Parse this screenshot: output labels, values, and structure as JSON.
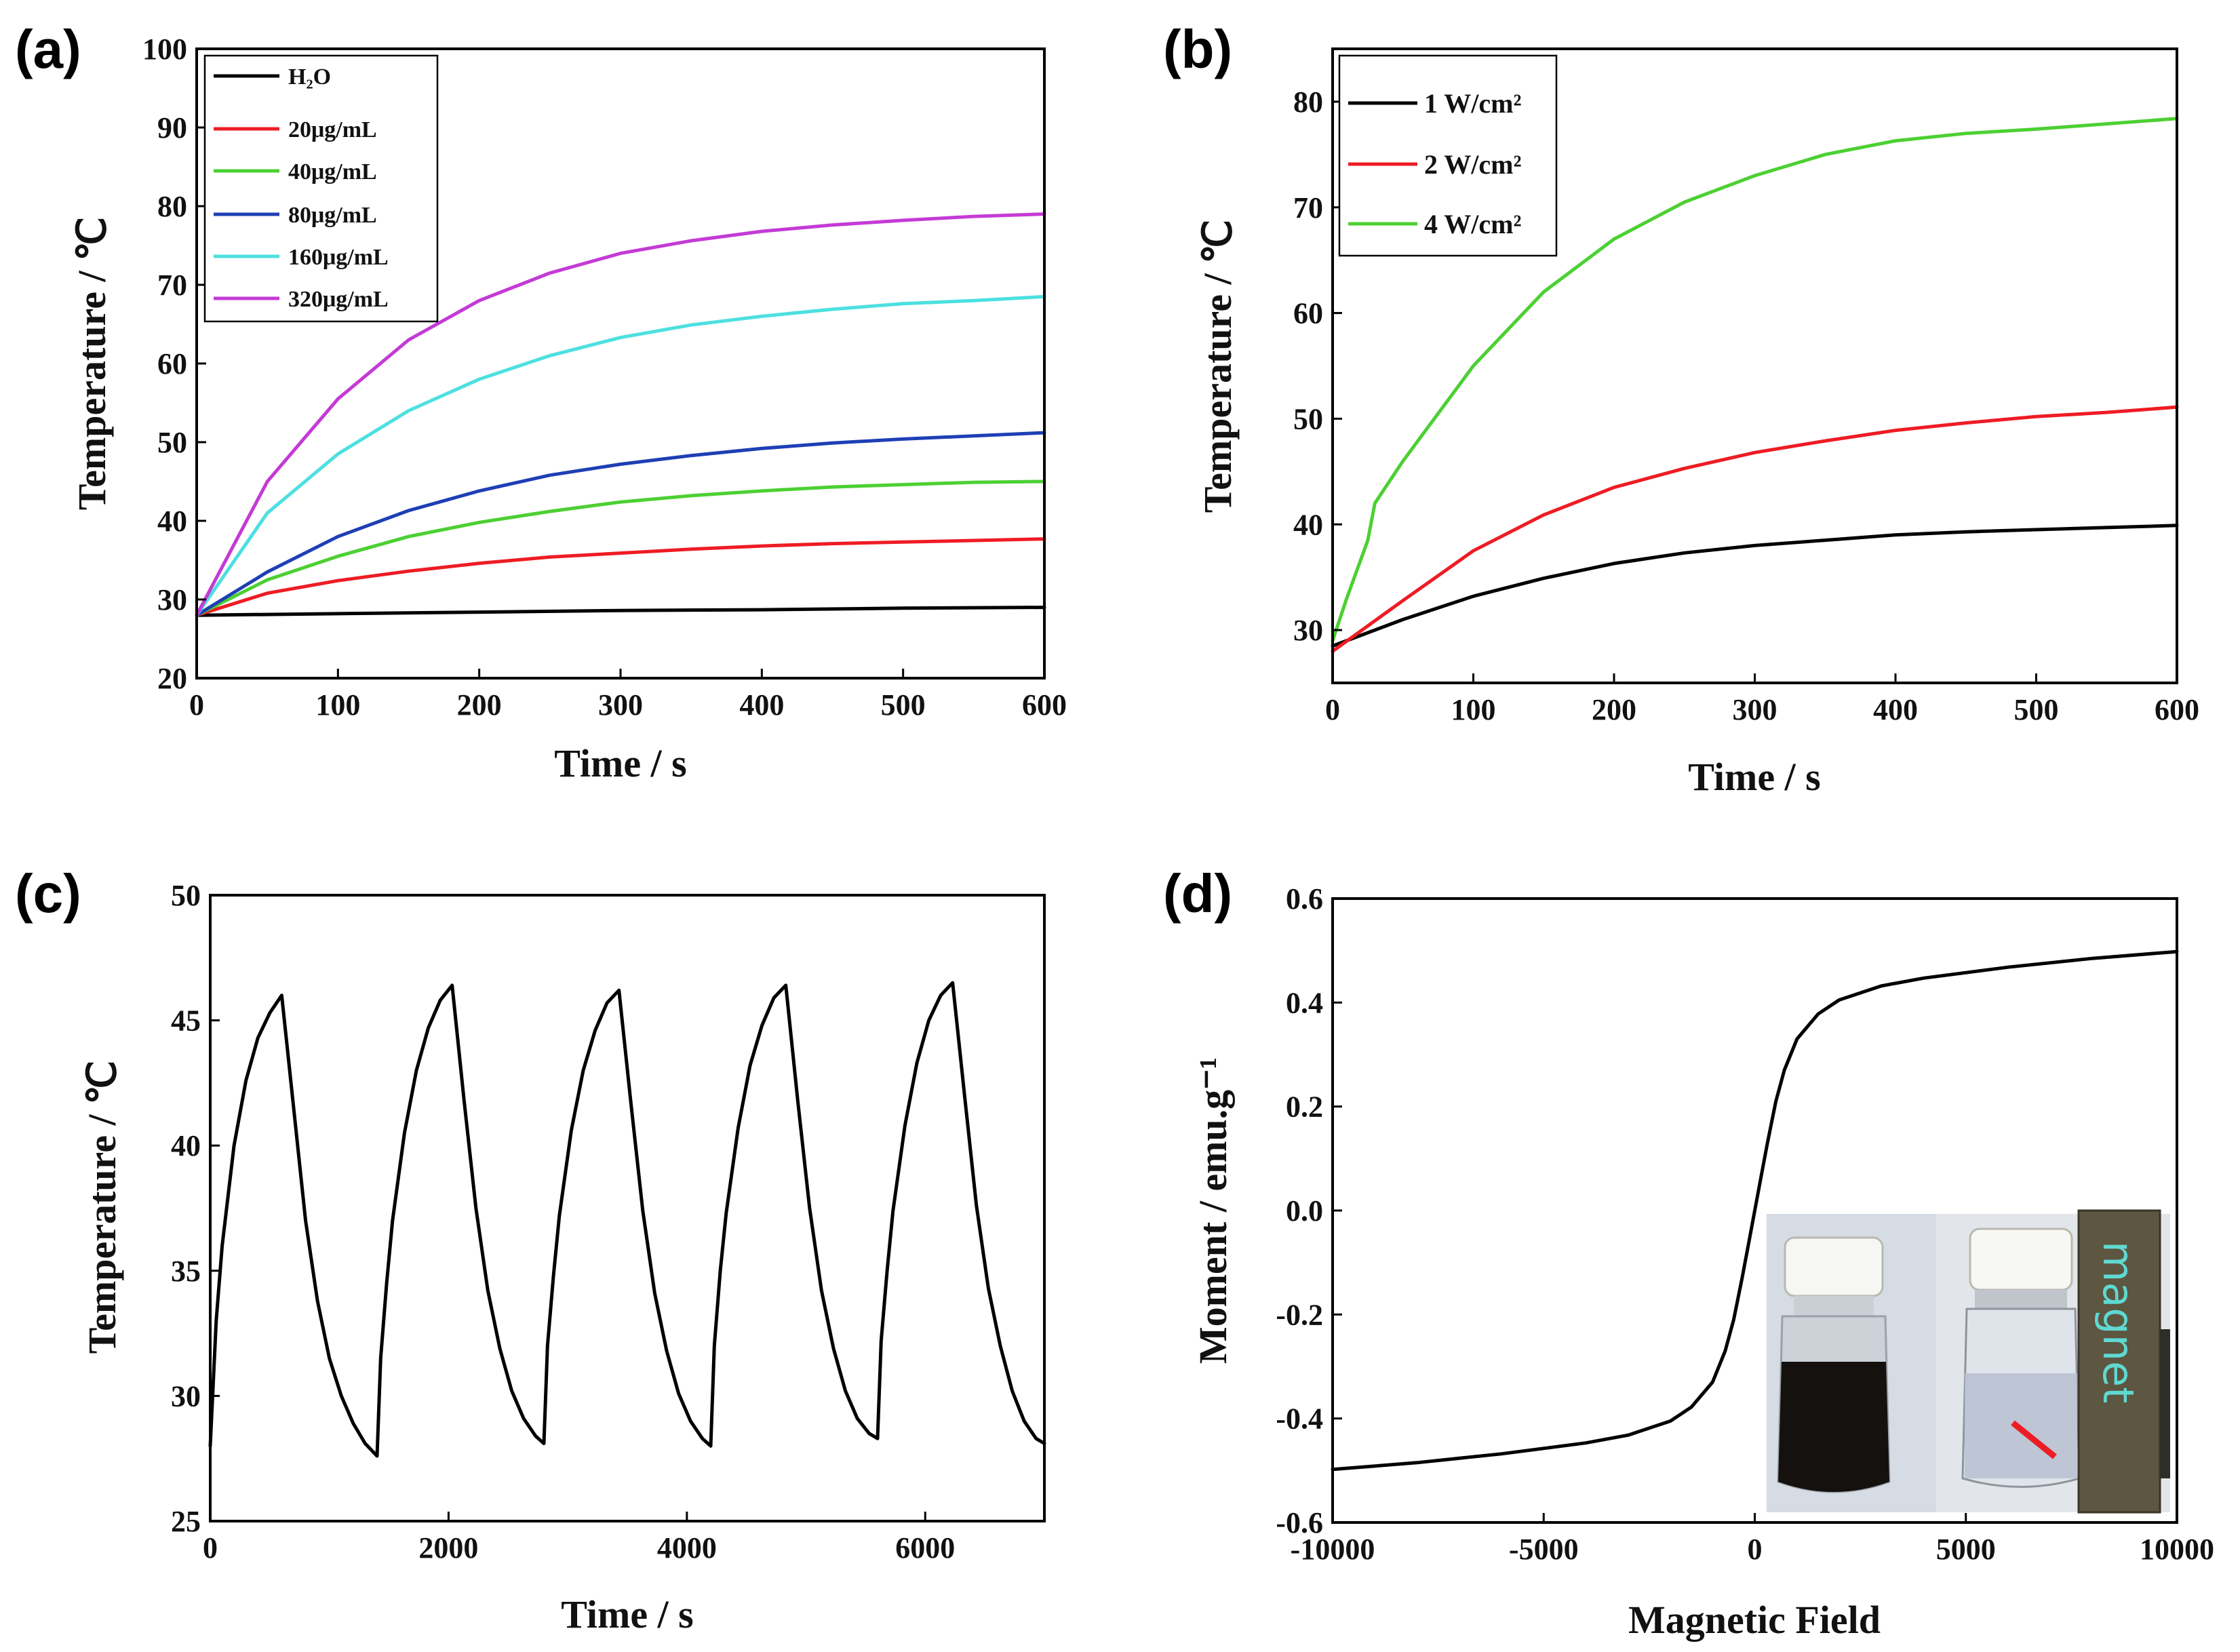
{
  "chart_data": [
    {
      "panel": "(a)",
      "type": "line",
      "xlabel": "Time / s",
      "ylabel": "Temperature / ℃",
      "xlim": [
        0,
        600
      ],
      "ylim": [
        20,
        100
      ],
      "xticks": [
        0,
        100,
        200,
        300,
        400,
        500,
        600
      ],
      "yticks": [
        20,
        30,
        40,
        50,
        60,
        70,
        80,
        90,
        100
      ],
      "legend_position": "top-left",
      "grid": false,
      "series": [
        {
          "name": "H₂O",
          "color": "#000000",
          "x": [
            0,
            100,
            200,
            300,
            400,
            500,
            600
          ],
          "y": [
            28.0,
            28.2,
            28.4,
            28.6,
            28.7,
            28.9,
            29.0
          ]
        },
        {
          "name": "20μg/mL",
          "color": "#ee1c24",
          "x": [
            0,
            50,
            100,
            150,
            200,
            250,
            300,
            350,
            400,
            450,
            500,
            550,
            600
          ],
          "y": [
            28.0,
            30.8,
            32.4,
            33.6,
            34.6,
            35.4,
            35.9,
            36.4,
            36.8,
            37.1,
            37.3,
            37.5,
            37.7
          ]
        },
        {
          "name": "40μg/mL",
          "color": "#4cd033",
          "x": [
            0,
            50,
            100,
            150,
            200,
            250,
            300,
            350,
            400,
            450,
            500,
            550,
            600
          ],
          "y": [
            28.0,
            32.5,
            35.5,
            38.0,
            39.8,
            41.2,
            42.4,
            43.2,
            43.8,
            44.3,
            44.6,
            44.9,
            45.0
          ]
        },
        {
          "name": "80μg/mL",
          "color": "#1e3fb5",
          "x": [
            0,
            50,
            100,
            150,
            200,
            250,
            300,
            350,
            400,
            450,
            500,
            550,
            600
          ],
          "y": [
            28.0,
            33.5,
            38.0,
            41.3,
            43.8,
            45.8,
            47.2,
            48.3,
            49.2,
            49.9,
            50.4,
            50.8,
            51.2
          ]
        },
        {
          "name": "160μg/mL",
          "color": "#4de0e0",
          "x": [
            0,
            50,
            100,
            150,
            200,
            250,
            300,
            350,
            400,
            450,
            500,
            550,
            600
          ],
          "y": [
            28.0,
            41.0,
            48.5,
            54.0,
            58.0,
            61.0,
            63.3,
            64.9,
            66.0,
            66.9,
            67.6,
            68.0,
            68.5
          ]
        },
        {
          "name": "320μg/mL",
          "color": "#c43ad6",
          "x": [
            0,
            50,
            100,
            150,
            200,
            250,
            300,
            350,
            400,
            450,
            500,
            550,
            600
          ],
          "y": [
            28.0,
            45.0,
            55.5,
            63.0,
            68.0,
            71.5,
            74.0,
            75.6,
            76.8,
            77.6,
            78.2,
            78.7,
            79.0
          ]
        }
      ]
    },
    {
      "panel": "(b)",
      "type": "line",
      "xlabel": "Time / s",
      "ylabel": "Temperature / ℃",
      "xlim": [
        0,
        600
      ],
      "ylim": [
        25,
        85
      ],
      "xticks": [
        0,
        100,
        200,
        300,
        400,
        500,
        600
      ],
      "yticks": [
        30,
        40,
        50,
        60,
        70,
        80
      ],
      "legend_position": "top-left",
      "grid": false,
      "series": [
        {
          "name": "1 W/cm²",
          "color": "#000000",
          "x": [
            0,
            50,
            100,
            150,
            200,
            250,
            300,
            350,
            400,
            450,
            500,
            550,
            600
          ],
          "y": [
            28.5,
            31.0,
            33.2,
            34.9,
            36.3,
            37.3,
            38.0,
            38.5,
            39.0,
            39.3,
            39.5,
            39.7,
            39.9
          ]
        },
        {
          "name": "2 W/cm²",
          "color": "#ee1c24",
          "x": [
            0,
            50,
            100,
            150,
            200,
            250,
            300,
            350,
            400,
            450,
            500,
            550,
            600
          ],
          "y": [
            28.0,
            32.8,
            37.5,
            40.9,
            43.5,
            45.3,
            46.8,
            47.9,
            48.9,
            49.6,
            50.2,
            50.6,
            51.1
          ]
        },
        {
          "name": "4 W/cm²",
          "color": "#4cd033",
          "x": [
            0,
            10,
            25,
            30,
            50,
            100,
            150,
            200,
            250,
            300,
            350,
            400,
            450,
            500,
            550,
            600
          ],
          "y": [
            29.0,
            33.0,
            38.5,
            42.0,
            46.0,
            55.0,
            62.0,
            67.0,
            70.5,
            73.0,
            75.0,
            76.3,
            77.0,
            77.4,
            77.9,
            78.4
          ]
        }
      ]
    },
    {
      "panel": "(c)",
      "type": "line",
      "xlabel": "Time / s",
      "ylabel": "Temperature / ℃",
      "xlim": [
        0,
        7000
      ],
      "ylim": [
        25,
        50
      ],
      "xticks": [
        0,
        2000,
        4000,
        6000
      ],
      "yticks": [
        25,
        30,
        35,
        40,
        45,
        50
      ],
      "grid": false,
      "series": [
        {
          "color": "#000000",
          "x": [
            0,
            50,
            100,
            200,
            300,
            400,
            500,
            600,
            700,
            800,
            900,
            1000,
            1100,
            1200,
            1300,
            1400,
            1430,
            1480,
            1530,
            1630,
            1730,
            1830,
            1930,
            2030,
            2130,
            2230,
            2330,
            2430,
            2530,
            2630,
            2730,
            2800,
            2830,
            2880,
            2930,
            3030,
            3130,
            3230,
            3330,
            3430,
            3530,
            3630,
            3730,
            3830,
            3930,
            4030,
            4130,
            4200,
            4230,
            4280,
            4330,
            4430,
            4530,
            4630,
            4730,
            4830,
            4930,
            5030,
            5130,
            5230,
            5330,
            5430,
            5530,
            5600,
            5630,
            5680,
            5730,
            5830,
            5930,
            6030,
            6130,
            6230,
            6330,
            6430,
            6530,
            6630,
            6730,
            6830,
            6930,
            7000
          ],
          "y": [
            28.0,
            33.0,
            36.0,
            40.0,
            42.6,
            44.3,
            45.3,
            46.0,
            41.5,
            37.0,
            33.8,
            31.5,
            30.0,
            28.9,
            28.1,
            27.6,
            31.5,
            34.5,
            37.0,
            40.5,
            43.0,
            44.7,
            45.8,
            46.4,
            41.8,
            37.5,
            34.2,
            31.9,
            30.2,
            29.1,
            28.4,
            28.1,
            32.0,
            34.8,
            37.2,
            40.6,
            43.0,
            44.6,
            45.7,
            46.2,
            41.7,
            37.4,
            34.1,
            31.8,
            30.1,
            29.0,
            28.3,
            28.0,
            32.0,
            35.0,
            37.3,
            40.7,
            43.2,
            44.8,
            45.9,
            46.4,
            41.8,
            37.5,
            34.2,
            31.9,
            30.2,
            29.1,
            28.5,
            28.3,
            32.2,
            35.0,
            37.4,
            40.8,
            43.3,
            45.0,
            46.0,
            46.5,
            42.0,
            37.6,
            34.3,
            32.0,
            30.2,
            29.0,
            28.3,
            28.1
          ]
        }
      ]
    },
    {
      "panel": "(d)",
      "type": "line",
      "xlabel": "Magnetic Field",
      "ylabel": "Moment / emu.g⁻¹",
      "xlim": [
        -10000,
        10000
      ],
      "ylim": [
        -0.6,
        0.6
      ],
      "xticks": [
        -10000,
        -5000,
        0,
        5000,
        10000
      ],
      "yticks": [
        -0.6,
        -0.4,
        -0.2,
        0.0,
        0.2,
        0.4,
        0.6
      ],
      "grid": false,
      "inset_text": "magnet",
      "series": [
        {
          "color": "#000000",
          "x": [
            -10000,
            -8000,
            -6000,
            -4000,
            -3000,
            -2000,
            -1500,
            -1000,
            -700,
            -500,
            -300,
            -150,
            0,
            150,
            300,
            500,
            700,
            1000,
            1500,
            2000,
            3000,
            4000,
            6000,
            8000,
            10000
          ],
          "y": [
            -0.498,
            -0.485,
            -0.468,
            -0.447,
            -0.432,
            -0.405,
            -0.378,
            -0.33,
            -0.27,
            -0.21,
            -0.13,
            -0.065,
            0.0,
            0.065,
            0.13,
            0.21,
            0.27,
            0.33,
            0.378,
            0.405,
            0.432,
            0.447,
            0.468,
            0.485,
            0.498
          ]
        }
      ]
    }
  ]
}
